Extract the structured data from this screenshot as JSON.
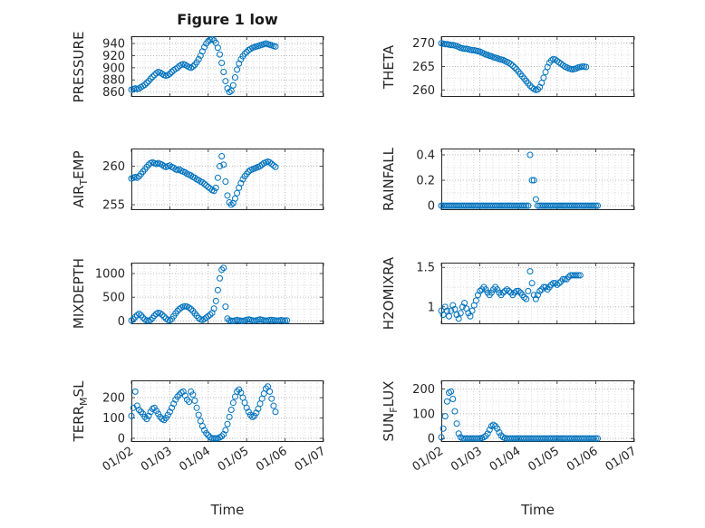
{
  "figure": {
    "title": "Figure 1 low",
    "xlabel": "Time",
    "marker_color": "#0072BD",
    "axes_color": "#262626",
    "tick_label_color": "#262626",
    "grid_major_color": "#b9b9b9",
    "grid_minor_color": "#dddddd"
  },
  "x_axis": {
    "label": "Time",
    "x_encoding": "day of month, January (01/02 = 2)",
    "xlim": [
      2,
      7
    ],
    "ticks": [
      2,
      3,
      4,
      5,
      6,
      7
    ],
    "tick_labels": [
      "01/02",
      "01/03",
      "01/04",
      "01/05",
      "01/06",
      "01/07"
    ],
    "minor_per_day": 6
  },
  "chart_data": [
    {
      "type": "scatter",
      "name": "PRESSURE",
      "ylabel": {
        "pre": "PRESSURE",
        "sub": "",
        "post": ""
      },
      "ylim": [
        852,
        952
      ],
      "yticks": [
        860,
        880,
        900,
        920,
        940
      ],
      "x_start": 2.0,
      "x_step": 0.05,
      "y": [
        864,
        865,
        866,
        865,
        866,
        868,
        870,
        872,
        875,
        878,
        882,
        885,
        888,
        891,
        893,
        892,
        890,
        888,
        887,
        888,
        890,
        893,
        896,
        898,
        900,
        903,
        905,
        906,
        905,
        903,
        901,
        900,
        902,
        905,
        909,
        914,
        920,
        927,
        934,
        940,
        944,
        946,
        947,
        945,
        941,
        933,
        922,
        908,
        893,
        878,
        866,
        860,
        862,
        871,
        884,
        897,
        907,
        914,
        919,
        923,
        926,
        929,
        931,
        933,
        934,
        935,
        936,
        937,
        938,
        939,
        940,
        939,
        938,
        937,
        936,
        935
      ]
    },
    {
      "type": "scatter",
      "name": "THETA",
      "ylabel": {
        "pre": "THETA",
        "sub": "",
        "post": ""
      },
      "ylim": [
        258.5,
        271.5
      ],
      "yticks": [
        260,
        265,
        270
      ],
      "x_start": 2.0,
      "x_step": 0.05,
      "y": [
        270.0,
        269.9,
        269.8,
        269.8,
        269.7,
        269.6,
        269.6,
        269.5,
        269.4,
        269.2,
        269.0,
        268.9,
        268.8,
        268.8,
        268.7,
        268.6,
        268.5,
        268.5,
        268.4,
        268.3,
        268.2,
        268.0,
        267.8,
        267.6,
        267.5,
        267.3,
        267.2,
        267.0,
        266.9,
        266.8,
        266.6,
        266.5,
        266.4,
        266.2,
        266.0,
        265.8,
        265.5,
        265.2,
        264.8,
        264.4,
        263.9,
        263.4,
        262.9,
        262.4,
        261.9,
        261.4,
        260.9,
        260.5,
        260.2,
        260.0,
        260.1,
        260.6,
        261.5,
        262.6,
        263.8,
        264.9,
        265.8,
        266.3,
        266.6,
        266.5,
        266.2,
        265.9,
        265.6,
        265.3,
        265.0,
        264.8,
        264.6,
        264.5,
        264.4,
        264.5,
        264.6,
        264.8,
        264.9,
        265.0,
        265.0,
        264.9
      ]
    },
    {
      "type": "scatter",
      "name": "AIR_TEMP",
      "ylabel": {
        "pre": "AIR",
        "sub": "T",
        "post": "EMP"
      },
      "ylim": [
        254.3,
        262.3
      ],
      "yticks": [
        255,
        260
      ],
      "x_start": 2.0,
      "x_step": 0.05,
      "y": [
        258.4,
        258.5,
        258.6,
        258.5,
        258.7,
        259.0,
        259.3,
        259.6,
        259.9,
        260.2,
        260.4,
        260.5,
        260.4,
        260.3,
        260.4,
        260.3,
        260.2,
        260.0,
        259.9,
        260.0,
        260.1,
        259.9,
        259.8,
        259.6,
        259.5,
        259.6,
        259.4,
        259.3,
        259.2,
        259.0,
        258.9,
        258.8,
        258.6,
        258.5,
        258.3,
        258.2,
        258.0,
        257.9,
        257.7,
        257.5,
        257.3,
        257.1,
        256.9,
        256.8,
        257.2,
        258.5,
        260.0,
        261.3,
        260.2,
        258.0,
        256.2,
        255.3,
        255.0,
        255.2,
        255.8,
        256.5,
        257.2,
        257.8,
        258.3,
        258.7,
        259.0,
        259.3,
        259.5,
        259.6,
        259.7,
        259.8,
        259.9,
        260.0,
        260.2,
        260.4,
        260.5,
        260.6,
        260.5,
        260.3,
        260.1,
        259.9
      ]
    },
    {
      "type": "scatter",
      "name": "RAINFALL",
      "ylabel": {
        "pre": "RAINFALL",
        "sub": "",
        "post": ""
      },
      "ylim": [
        -0.035,
        0.45
      ],
      "yticks": [
        0,
        0.2,
        0.4
      ],
      "x_start": 2.0,
      "x_step": 0.05,
      "y": [
        0,
        0,
        0,
        0,
        0,
        0,
        0,
        0,
        0,
        0,
        0,
        0,
        0,
        0,
        0,
        0,
        0,
        0,
        0,
        0,
        0,
        0,
        0,
        0,
        0,
        0,
        0,
        0,
        0,
        0,
        0,
        0,
        0,
        0,
        0,
        0,
        0,
        0,
        0,
        0,
        0,
        0,
        0,
        0,
        0,
        0,
        0.4,
        0.2,
        0.2,
        0.05,
        0,
        0,
        0,
        0,
        0,
        0,
        0,
        0,
        0,
        0,
        0,
        0,
        0,
        0,
        0,
        0,
        0,
        0,
        0,
        0,
        0,
        0,
        0,
        0,
        0,
        0,
        0,
        0,
        0,
        0,
        0,
        0
      ]
    },
    {
      "type": "scatter",
      "name": "MIXDEPTH",
      "ylabel": {
        "pre": "MIXDEPTH",
        "sub": "",
        "post": ""
      },
      "ylim": [
        -70,
        1230
      ],
      "yticks": [
        0,
        500,
        1000
      ],
      "x_start": 2.0,
      "x_step": 0.05,
      "y": [
        10,
        30,
        80,
        120,
        150,
        120,
        70,
        30,
        10,
        5,
        20,
        60,
        110,
        150,
        170,
        160,
        130,
        90,
        50,
        20,
        10,
        40,
        100,
        160,
        210,
        250,
        280,
        300,
        310,
        300,
        280,
        250,
        210,
        160,
        110,
        60,
        30,
        20,
        40,
        70,
        100,
        130,
        170,
        260,
        420,
        650,
        900,
        1080,
        1120,
        300,
        50,
        10,
        5,
        0,
        10,
        20,
        10,
        5,
        0,
        10,
        20,
        30,
        20,
        10,
        5,
        10,
        20,
        30,
        20,
        10,
        5,
        10,
        15,
        20,
        15,
        10,
        5,
        10,
        15,
        10,
        5,
        10
      ]
    },
    {
      "type": "scatter",
      "name": "H2OMIXRA",
      "ylabel": {
        "pre": "H2OMIXRA",
        "sub": "",
        "post": ""
      },
      "ylim": [
        0.78,
        1.56
      ],
      "yticks": [
        1,
        1.5
      ],
      "x_start": 2.0,
      "x_step": 0.05,
      "y": [
        0.95,
        0.9,
        1.0,
        0.95,
        0.88,
        0.95,
        1.02,
        0.97,
        0.9,
        0.85,
        0.92,
        1.0,
        1.05,
        0.98,
        0.92,
        0.88,
        0.95,
        1.02,
        1.08,
        1.15,
        1.2,
        1.22,
        1.25,
        1.22,
        1.18,
        1.15,
        1.18,
        1.22,
        1.25,
        1.22,
        1.18,
        1.15,
        1.18,
        1.2,
        1.22,
        1.2,
        1.18,
        1.15,
        1.18,
        1.2,
        1.2,
        1.18,
        1.15,
        1.12,
        1.1,
        1.2,
        1.45,
        1.3,
        1.15,
        1.1,
        1.15,
        1.2,
        1.22,
        1.25,
        1.25,
        1.22,
        1.25,
        1.28,
        1.3,
        1.3,
        1.28,
        1.3,
        1.32,
        1.35,
        1.35,
        1.35,
        1.38,
        1.4,
        1.4,
        1.4,
        1.4,
        1.4,
        1.4
      ]
    },
    {
      "type": "scatter",
      "name": "TERR_MSL",
      "ylabel": {
        "pre": "TERR",
        "sub": "M",
        "post": "SL"
      },
      "ylim": [
        -18,
        285
      ],
      "yticks": [
        0,
        100,
        200
      ],
      "x_start": 2.0,
      "x_step": 0.05,
      "y": [
        110,
        150,
        230,
        160,
        140,
        130,
        120,
        105,
        95,
        110,
        130,
        145,
        150,
        135,
        120,
        105,
        95,
        90,
        100,
        115,
        130,
        150,
        170,
        190,
        205,
        215,
        225,
        230,
        210,
        190,
        180,
        230,
        215,
        185,
        150,
        115,
        85,
        60,
        40,
        25,
        15,
        5,
        0,
        0,
        0,
        0,
        5,
        10,
        20,
        40,
        70,
        105,
        140,
        175,
        205,
        230,
        240,
        225,
        200,
        175,
        150,
        130,
        115,
        105,
        110,
        125,
        145,
        170,
        195,
        220,
        245,
        255,
        230,
        195,
        160,
        130
      ]
    },
    {
      "type": "scatter",
      "name": "SUN_FLUX",
      "ylabel": {
        "pre": "SUN",
        "sub": "F",
        "post": "LUX"
      },
      "ylim": [
        -14,
        235
      ],
      "yticks": [
        0,
        100,
        200
      ],
      "x_start": 2.0,
      "x_step": 0.05,
      "y": [
        5,
        40,
        90,
        150,
        185,
        190,
        160,
        110,
        60,
        20,
        5,
        0,
        0,
        0,
        0,
        0,
        0,
        0,
        0,
        0,
        0,
        2,
        5,
        10,
        20,
        35,
        50,
        55,
        50,
        40,
        25,
        12,
        5,
        2,
        0,
        0,
        0,
        0,
        0,
        0,
        0,
        0,
        0,
        0,
        0,
        0,
        0,
        0,
        0,
        0,
        0,
        0,
        0,
        0,
        0,
        0,
        0,
        0,
        0,
        0,
        0,
        0,
        0,
        0,
        0,
        0,
        0,
        0,
        0,
        0,
        0,
        0,
        0,
        0,
        0,
        0,
        0,
        0,
        0,
        0,
        0,
        0
      ]
    }
  ]
}
